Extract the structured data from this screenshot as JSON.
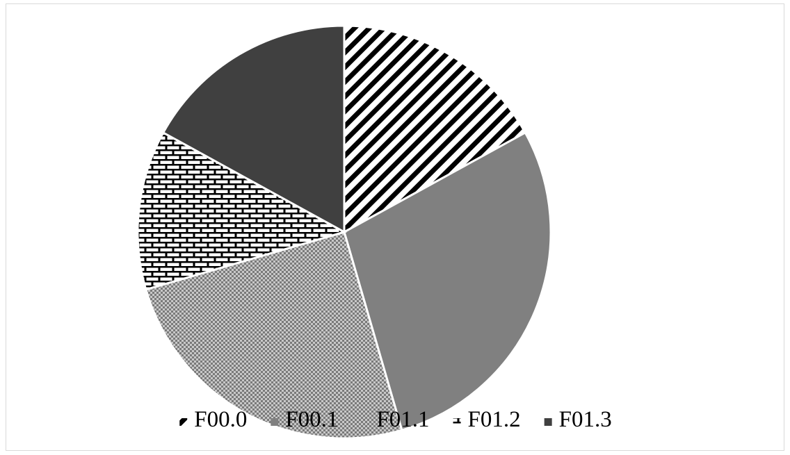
{
  "chart_data": {
    "type": "pie",
    "title": "",
    "legend_position": "bottom",
    "start_angle_deg": 0,
    "direction": "clockwise",
    "slices": [
      {
        "label": "F00.0",
        "value": 17.0,
        "fill": "diagonal-stripes",
        "color": "#000000"
      },
      {
        "label": "F00.1",
        "value": 28.5,
        "fill": "solid",
        "color": "#808080"
      },
      {
        "label": "F01.1",
        "value": 25.0,
        "fill": "checker",
        "color": "#a6a6a6"
      },
      {
        "label": "F01.2",
        "value": 12.5,
        "fill": "brick",
        "color": "#000000"
      },
      {
        "label": "F01.3",
        "value": 17.0,
        "fill": "solid",
        "color": "#404040"
      }
    ]
  }
}
